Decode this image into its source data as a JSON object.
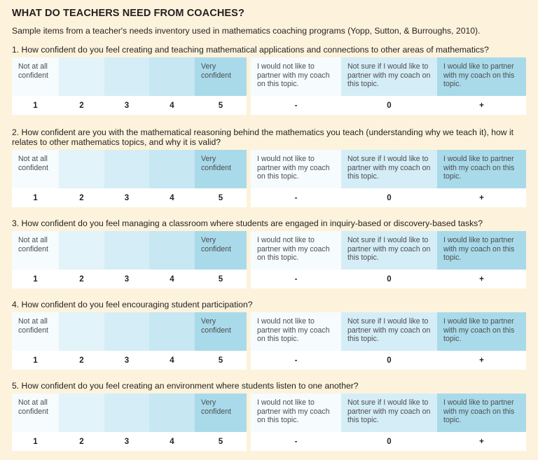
{
  "title": "WHAT DO TEACHERS NEED FROM COACHES?",
  "subtitle": "Sample items from a teacher's needs inventory used in mathematics coaching programs (Yopp, Sutton, & Burroughs, 2010).",
  "scale": {
    "low_label": "Not at all confident",
    "high_label": "Very confident",
    "numbers": [
      "1",
      "2",
      "3",
      "4",
      "5"
    ]
  },
  "partner": {
    "labels": [
      "I would not like to partner with my coach on this topic.",
      "Not sure if I would like to partner with my coach on this topic.",
      "I would like to partner with my coach on this topic."
    ],
    "symbols": [
      "-",
      "0",
      "+"
    ]
  },
  "questions": [
    "1. How confident do you feel creating and teaching mathematical applications and connections to other areas of mathematics?",
    "2. How confident are you with the mathematical reasoning behind the mathematics you teach (understanding why we teach it), how it relates to other mathematics topics, and why it is valid?",
    "3. How confident do you feel managing a classroom where students are engaged in inquiry-based or discovery-based tasks?",
    "4. How confident do you feel encouraging student participation?",
    "5. How confident do you feel creating an environment where students listen to one another?"
  ]
}
